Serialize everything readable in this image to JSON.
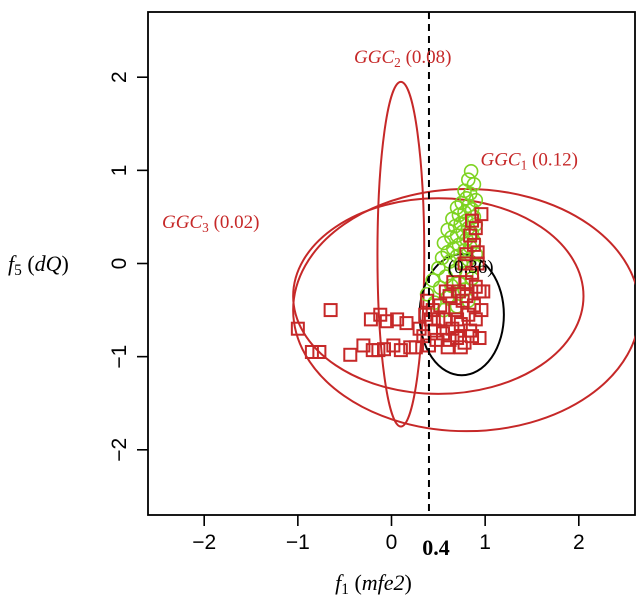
{
  "chart_data": {
    "type": "scatter",
    "title": "",
    "xlabel_parts": [
      {
        "text": "f",
        "italic": true
      },
      {
        "text": "1",
        "sub": true
      },
      {
        "text": " ("
      },
      {
        "text": "mfe2",
        "italic": true
      },
      {
        "text": ")"
      }
    ],
    "ylabel_parts": [
      {
        "text": "f",
        "italic": true
      },
      {
        "text": "5",
        "sub": true
      },
      {
        "text": " ("
      },
      {
        "text": "dQ",
        "italic": true
      },
      {
        "text": ")"
      }
    ],
    "xlim": [
      -2.6,
      2.6
    ],
    "ylim": [
      -2.7,
      2.7
    ],
    "x_ticks": [
      -2,
      -1,
      0,
      1,
      2
    ],
    "y_ticks": [
      -2,
      -1,
      0,
      1,
      2
    ],
    "tick_labels": {
      "x": [
        "−2",
        "−1",
        "0",
        "1",
        "2"
      ],
      "y": [
        "−2",
        "−1",
        "0",
        "1",
        "2"
      ]
    },
    "threshold_line": {
      "x": 0.4,
      "label": "0.4",
      "style": "dashed"
    },
    "colors": {
      "red": "#c62828",
      "green": "#7ed321",
      "black": "#000000"
    },
    "ellipses": [
      {
        "cx": 0.1,
        "cy": 0.1,
        "rx": 0.25,
        "ry": 1.85,
        "color": "#c62828",
        "label": {
          "name": "GGC",
          "sub": "2",
          "value": " (0.08)"
        }
      },
      {
        "cx": 0.8,
        "cy": -0.5,
        "rx": 1.85,
        "ry": 1.3,
        "color": "#c62828",
        "label": {
          "name": "GGC",
          "sub": "1",
          "value": " (0.12)"
        }
      },
      {
        "cx": 0.5,
        "cy": -0.35,
        "rx": 1.55,
        "ry": 1.05,
        "color": "#c62828",
        "label": {
          "name": "GGC",
          "sub": "3",
          "value": " (0.02)"
        }
      },
      {
        "cx": 0.75,
        "cy": -0.55,
        "rx": 0.45,
        "ry": 0.65,
        "color": "#000000",
        "label": {
          "name": "",
          "sub": "",
          "value": "(0.36)"
        }
      }
    ],
    "series": [
      {
        "marker": "circle",
        "color": "#7ed321",
        "points": [
          [
            0.85,
            0.99
          ],
          [
            0.82,
            0.9
          ],
          [
            0.88,
            0.85
          ],
          [
            0.78,
            0.78
          ],
          [
            0.84,
            0.75
          ],
          [
            0.8,
            0.7
          ],
          [
            0.9,
            0.68
          ],
          [
            0.75,
            0.65
          ],
          [
            0.82,
            0.62
          ],
          [
            0.7,
            0.6
          ],
          [
            0.86,
            0.58
          ],
          [
            0.78,
            0.55
          ],
          [
            0.72,
            0.52
          ],
          [
            0.88,
            0.5
          ],
          [
            0.65,
            0.48
          ],
          [
            0.8,
            0.46
          ],
          [
            0.74,
            0.43
          ],
          [
            0.9,
            0.42
          ],
          [
            0.68,
            0.4
          ],
          [
            0.82,
            0.38
          ],
          [
            0.6,
            0.36
          ],
          [
            0.76,
            0.34
          ],
          [
            0.86,
            0.32
          ],
          [
            0.7,
            0.3
          ],
          [
            0.64,
            0.28
          ],
          [
            0.8,
            0.26
          ],
          [
            0.88,
            0.24
          ],
          [
            0.56,
            0.22
          ],
          [
            0.72,
            0.2
          ],
          [
            0.84,
            0.18
          ],
          [
            0.66,
            0.16
          ],
          [
            0.78,
            0.14
          ],
          [
            0.6,
            0.12
          ],
          [
            0.9,
            0.1
          ],
          [
            0.7,
            0.08
          ],
          [
            0.54,
            0.06
          ],
          [
            0.82,
            0.04
          ],
          [
            0.62,
            0.02
          ],
          [
            0.74,
            0.0
          ],
          [
            0.88,
            -0.02
          ],
          [
            0.5,
            -0.05
          ],
          [
            0.68,
            -0.08
          ],
          [
            0.8,
            -0.1
          ],
          [
            0.58,
            -0.14
          ],
          [
            0.86,
            -0.16
          ],
          [
            0.44,
            -0.18
          ],
          [
            0.72,
            -0.2
          ],
          [
            0.64,
            -0.24
          ],
          [
            0.52,
            -0.26
          ],
          [
            0.78,
            -0.28
          ],
          [
            0.38,
            -0.33
          ],
          [
            0.6,
            -0.36
          ],
          [
            0.82,
            -0.4
          ],
          [
            0.46,
            -0.42
          ],
          [
            0.7,
            -0.46
          ],
          [
            0.56,
            -0.5
          ]
        ]
      },
      {
        "marker": "square",
        "color": "#c62828",
        "points": [
          [
            -1.0,
            -0.7
          ],
          [
            -0.85,
            -0.95
          ],
          [
            -0.77,
            -0.95
          ],
          [
            -0.65,
            -0.5
          ],
          [
            -0.44,
            -0.98
          ],
          [
            -0.3,
            -0.88
          ],
          [
            -0.2,
            -0.93
          ],
          [
            -0.14,
            -0.93
          ],
          [
            -0.08,
            -0.92
          ],
          [
            -0.22,
            -0.6
          ],
          [
            -0.12,
            -0.55
          ],
          [
            -0.05,
            -0.62
          ],
          [
            0.02,
            -0.88
          ],
          [
            0.06,
            -0.6
          ],
          [
            0.1,
            -0.93
          ],
          [
            0.16,
            -0.64
          ],
          [
            0.2,
            -0.9
          ],
          [
            0.26,
            -0.9
          ],
          [
            0.3,
            -0.7
          ],
          [
            0.36,
            -0.55
          ],
          [
            0.4,
            -0.88
          ],
          [
            0.44,
            -0.5
          ],
          [
            0.48,
            -0.82
          ],
          [
            0.52,
            -0.45
          ],
          [
            0.55,
            -0.75
          ],
          [
            0.58,
            -0.6
          ],
          [
            0.6,
            -0.9
          ],
          [
            0.62,
            -0.35
          ],
          [
            0.65,
            -0.7
          ],
          [
            0.68,
            -0.5
          ],
          [
            0.7,
            -0.8
          ],
          [
            0.72,
            -0.3
          ],
          [
            0.74,
            -0.65
          ],
          [
            0.76,
            -0.4
          ],
          [
            0.78,
            -0.85
          ],
          [
            0.8,
            -0.2
          ],
          [
            0.82,
            -0.55
          ],
          [
            0.84,
            -0.72
          ],
          [
            0.86,
            -0.1
          ],
          [
            0.88,
            -0.45
          ],
          [
            0.9,
            -0.6
          ],
          [
            0.92,
            0.0
          ],
          [
            0.94,
            -0.3
          ],
          [
            0.96,
            -0.5
          ],
          [
            0.8,
            0.1
          ],
          [
            0.84,
            0.3
          ],
          [
            0.86,
            0.46
          ],
          [
            0.88,
            0.2
          ],
          [
            0.9,
            0.38
          ],
          [
            0.96,
            0.53
          ],
          [
            0.92,
            0.12
          ],
          [
            0.78,
            0.0
          ],
          [
            0.66,
            -0.2
          ],
          [
            0.58,
            -0.3
          ],
          [
            0.5,
            -0.6
          ],
          [
            0.46,
            -0.72
          ],
          [
            0.42,
            -0.6
          ],
          [
            0.38,
            -0.4
          ],
          [
            0.34,
            -0.78
          ],
          [
            0.62,
            -0.82
          ],
          [
            0.7,
            -0.6
          ],
          [
            0.74,
            -0.9
          ],
          [
            0.8,
            -0.35
          ],
          [
            0.86,
            -0.78
          ],
          [
            0.9,
            -0.25
          ],
          [
            0.94,
            -0.8
          ],
          [
            0.98,
            -0.3
          ]
        ]
      }
    ]
  }
}
